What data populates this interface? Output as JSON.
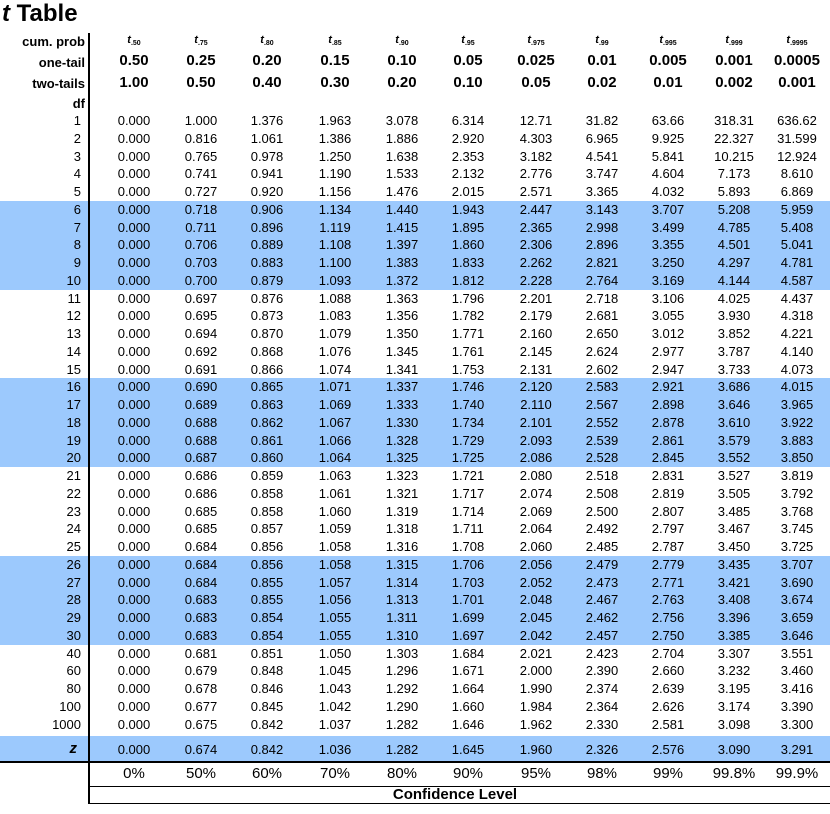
{
  "title": {
    "italic": "t",
    "rest": " Table"
  },
  "header": {
    "cum_prob_label": "cum. prob",
    "one_tail_label": "one-tail",
    "two_tails_label": "two-tails",
    "df_label": "df",
    "t_subscripts": [
      ".50",
      ".75",
      ".80",
      ".85",
      ".90",
      ".95",
      ".975",
      ".99",
      ".995",
      ".999",
      ".9995"
    ],
    "one_tail": [
      "0.50",
      "0.25",
      "0.20",
      "0.15",
      "0.10",
      "0.05",
      "0.025",
      "0.01",
      "0.005",
      "0.001",
      "0.0005"
    ],
    "two_tails": [
      "1.00",
      "0.50",
      "0.40",
      "0.30",
      "0.20",
      "0.10",
      "0.05",
      "0.02",
      "0.01",
      "0.002",
      "0.001"
    ]
  },
  "rows": [
    {
      "df": "1",
      "values": [
        "0.000",
        "1.000",
        "1.376",
        "1.963",
        "3.078",
        "6.314",
        "12.71",
        "31.82",
        "63.66",
        "318.31",
        "636.62"
      ]
    },
    {
      "df": "2",
      "values": [
        "0.000",
        "0.816",
        "1.061",
        "1.386",
        "1.886",
        "2.920",
        "4.303",
        "6.965",
        "9.925",
        "22.327",
        "31.599"
      ]
    },
    {
      "df": "3",
      "values": [
        "0.000",
        "0.765",
        "0.978",
        "1.250",
        "1.638",
        "2.353",
        "3.182",
        "4.541",
        "5.841",
        "10.215",
        "12.924"
      ]
    },
    {
      "df": "4",
      "values": [
        "0.000",
        "0.741",
        "0.941",
        "1.190",
        "1.533",
        "2.132",
        "2.776",
        "3.747",
        "4.604",
        "7.173",
        "8.610"
      ]
    },
    {
      "df": "5",
      "values": [
        "0.000",
        "0.727",
        "0.920",
        "1.156",
        "1.476",
        "2.015",
        "2.571",
        "3.365",
        "4.032",
        "5.893",
        "6.869"
      ]
    },
    {
      "df": "6",
      "values": [
        "0.000",
        "0.718",
        "0.906",
        "1.134",
        "1.440",
        "1.943",
        "2.447",
        "3.143",
        "3.707",
        "5.208",
        "5.959"
      ]
    },
    {
      "df": "7",
      "values": [
        "0.000",
        "0.711",
        "0.896",
        "1.119",
        "1.415",
        "1.895",
        "2.365",
        "2.998",
        "3.499",
        "4.785",
        "5.408"
      ]
    },
    {
      "df": "8",
      "values": [
        "0.000",
        "0.706",
        "0.889",
        "1.108",
        "1.397",
        "1.860",
        "2.306",
        "2.896",
        "3.355",
        "4.501",
        "5.041"
      ]
    },
    {
      "df": "9",
      "values": [
        "0.000",
        "0.703",
        "0.883",
        "1.100",
        "1.383",
        "1.833",
        "2.262",
        "2.821",
        "3.250",
        "4.297",
        "4.781"
      ]
    },
    {
      "df": "10",
      "values": [
        "0.000",
        "0.700",
        "0.879",
        "1.093",
        "1.372",
        "1.812",
        "2.228",
        "2.764",
        "3.169",
        "4.144",
        "4.587"
      ]
    },
    {
      "df": "11",
      "values": [
        "0.000",
        "0.697",
        "0.876",
        "1.088",
        "1.363",
        "1.796",
        "2.201",
        "2.718",
        "3.106",
        "4.025",
        "4.437"
      ]
    },
    {
      "df": "12",
      "values": [
        "0.000",
        "0.695",
        "0.873",
        "1.083",
        "1.356",
        "1.782",
        "2.179",
        "2.681",
        "3.055",
        "3.930",
        "4.318"
      ]
    },
    {
      "df": "13",
      "values": [
        "0.000",
        "0.694",
        "0.870",
        "1.079",
        "1.350",
        "1.771",
        "2.160",
        "2.650",
        "3.012",
        "3.852",
        "4.221"
      ]
    },
    {
      "df": "14",
      "values": [
        "0.000",
        "0.692",
        "0.868",
        "1.076",
        "1.345",
        "1.761",
        "2.145",
        "2.624",
        "2.977",
        "3.787",
        "4.140"
      ]
    },
    {
      "df": "15",
      "values": [
        "0.000",
        "0.691",
        "0.866",
        "1.074",
        "1.341",
        "1.753",
        "2.131",
        "2.602",
        "2.947",
        "3.733",
        "4.073"
      ]
    },
    {
      "df": "16",
      "values": [
        "0.000",
        "0.690",
        "0.865",
        "1.071",
        "1.337",
        "1.746",
        "2.120",
        "2.583",
        "2.921",
        "3.686",
        "4.015"
      ]
    },
    {
      "df": "17",
      "values": [
        "0.000",
        "0.689",
        "0.863",
        "1.069",
        "1.333",
        "1.740",
        "2.110",
        "2.567",
        "2.898",
        "3.646",
        "3.965"
      ]
    },
    {
      "df": "18",
      "values": [
        "0.000",
        "0.688",
        "0.862",
        "1.067",
        "1.330",
        "1.734",
        "2.101",
        "2.552",
        "2.878",
        "3.610",
        "3.922"
      ]
    },
    {
      "df": "19",
      "values": [
        "0.000",
        "0.688",
        "0.861",
        "1.066",
        "1.328",
        "1.729",
        "2.093",
        "2.539",
        "2.861",
        "3.579",
        "3.883"
      ]
    },
    {
      "df": "20",
      "values": [
        "0.000",
        "0.687",
        "0.860",
        "1.064",
        "1.325",
        "1.725",
        "2.086",
        "2.528",
        "2.845",
        "3.552",
        "3.850"
      ]
    },
    {
      "df": "21",
      "values": [
        "0.000",
        "0.686",
        "0.859",
        "1.063",
        "1.323",
        "1.721",
        "2.080",
        "2.518",
        "2.831",
        "3.527",
        "3.819"
      ]
    },
    {
      "df": "22",
      "values": [
        "0.000",
        "0.686",
        "0.858",
        "1.061",
        "1.321",
        "1.717",
        "2.074",
        "2.508",
        "2.819",
        "3.505",
        "3.792"
      ]
    },
    {
      "df": "23",
      "values": [
        "0.000",
        "0.685",
        "0.858",
        "1.060",
        "1.319",
        "1.714",
        "2.069",
        "2.500",
        "2.807",
        "3.485",
        "3.768"
      ]
    },
    {
      "df": "24",
      "values": [
        "0.000",
        "0.685",
        "0.857",
        "1.059",
        "1.318",
        "1.711",
        "2.064",
        "2.492",
        "2.797",
        "3.467",
        "3.745"
      ]
    },
    {
      "df": "25",
      "values": [
        "0.000",
        "0.684",
        "0.856",
        "1.058",
        "1.316",
        "1.708",
        "2.060",
        "2.485",
        "2.787",
        "3.450",
        "3.725"
      ]
    },
    {
      "df": "26",
      "values": [
        "0.000",
        "0.684",
        "0.856",
        "1.058",
        "1.315",
        "1.706",
        "2.056",
        "2.479",
        "2.779",
        "3.435",
        "3.707"
      ]
    },
    {
      "df": "27",
      "values": [
        "0.000",
        "0.684",
        "0.855",
        "1.057",
        "1.314",
        "1.703",
        "2.052",
        "2.473",
        "2.771",
        "3.421",
        "3.690"
      ]
    },
    {
      "df": "28",
      "values": [
        "0.000",
        "0.683",
        "0.855",
        "1.056",
        "1.313",
        "1.701",
        "2.048",
        "2.467",
        "2.763",
        "3.408",
        "3.674"
      ]
    },
    {
      "df": "29",
      "values": [
        "0.000",
        "0.683",
        "0.854",
        "1.055",
        "1.311",
        "1.699",
        "2.045",
        "2.462",
        "2.756",
        "3.396",
        "3.659"
      ]
    },
    {
      "df": "30",
      "values": [
        "0.000",
        "0.683",
        "0.854",
        "1.055",
        "1.310",
        "1.697",
        "2.042",
        "2.457",
        "2.750",
        "3.385",
        "3.646"
      ]
    },
    {
      "df": "40",
      "values": [
        "0.000",
        "0.681",
        "0.851",
        "1.050",
        "1.303",
        "1.684",
        "2.021",
        "2.423",
        "2.704",
        "3.307",
        "3.551"
      ]
    },
    {
      "df": "60",
      "values": [
        "0.000",
        "0.679",
        "0.848",
        "1.045",
        "1.296",
        "1.671",
        "2.000",
        "2.390",
        "2.660",
        "3.232",
        "3.460"
      ]
    },
    {
      "df": "80",
      "values": [
        "0.000",
        "0.678",
        "0.846",
        "1.043",
        "1.292",
        "1.664",
        "1.990",
        "2.374",
        "2.639",
        "3.195",
        "3.416"
      ]
    },
    {
      "df": "100",
      "values": [
        "0.000",
        "0.677",
        "0.845",
        "1.042",
        "1.290",
        "1.660",
        "1.984",
        "2.364",
        "2.626",
        "3.174",
        "3.390"
      ]
    },
    {
      "df": "1000",
      "values": [
        "0.000",
        "0.675",
        "0.842",
        "1.037",
        "1.282",
        "1.646",
        "1.962",
        "2.330",
        "2.581",
        "3.098",
        "3.300"
      ]
    }
  ],
  "z_row": {
    "label": "z",
    "values": [
      "0.000",
      "0.674",
      "0.842",
      "1.036",
      "1.282",
      "1.645",
      "1.960",
      "2.326",
      "2.576",
      "3.090",
      "3.291"
    ]
  },
  "confidence": [
    "0%",
    "50%",
    "60%",
    "70%",
    "80%",
    "90%",
    "95%",
    "98%",
    "99%",
    "99.8%",
    "99.9%"
  ],
  "confidence_label": "Confidence Level",
  "colors": {
    "band": "#9cc9fd",
    "text": "#000000",
    "rule": "#000000"
  }
}
